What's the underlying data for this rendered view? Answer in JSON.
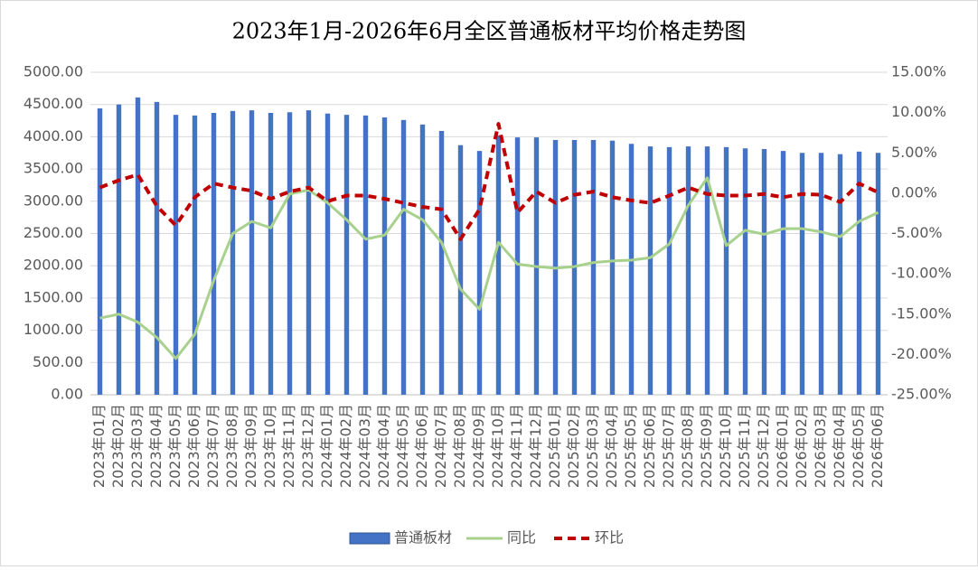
{
  "chart_data": {
    "type": "bar-line",
    "title": "2023年1月-2026年6月全区普通板材平均价格走势图",
    "categories": [
      "2023年01月",
      "2023年02月",
      "2023年03月",
      "2023年04月",
      "2023年05月",
      "2023年06月",
      "2023年07月",
      "2023年08月",
      "2023年09月",
      "2023年10月",
      "2023年11月",
      "2023年12月",
      "2024年01月",
      "2024年02月",
      "2024年03月",
      "2024年04月",
      "2024年05月",
      "2024年06月",
      "2024年07月",
      "2024年08月",
      "2024年09月",
      "2024年10月",
      "2024年11月",
      "2024年12月",
      "2025年01月",
      "2025年02月",
      "2025年03月",
      "2025年04月",
      "2025年05月",
      "2025年06月",
      "2025年07月",
      "2025年08月",
      "2025年09月",
      "2025年10月",
      "2025年11月",
      "2025年12月",
      "2026年01月",
      "2026年02月",
      "2026年03月",
      "2026年04月",
      "2026年05月",
      "2026年06月"
    ],
    "series": [
      {
        "name": "普通板材",
        "type": "bar",
        "color": "#4472c4",
        "values": [
          4440,
          4500,
          4610,
          4540,
          4340,
          4330,
          4370,
          4400,
          4410,
          4370,
          4380,
          4410,
          4360,
          4340,
          4330,
          4300,
          4260,
          4190,
          4090,
          3870,
          3780,
          4020,
          3990,
          3990,
          3950,
          3950,
          3950,
          3940,
          3890,
          3850,
          3840,
          3850,
          3850,
          3840,
          3820,
          3810,
          3780,
          3750,
          3750,
          3730,
          3770,
          3750
        ]
      },
      {
        "name": "同比",
        "type": "line",
        "axis": "y2",
        "color": "#a9d18e",
        "values": [
          -15.5,
          -15.0,
          -16.0,
          -17.9,
          -20.5,
          -17.5,
          -10.8,
          -5.0,
          -3.5,
          -4.3,
          -0.1,
          0.4,
          -1.2,
          -3.3,
          -5.7,
          -5.2,
          -2.0,
          -3.3,
          -6.1,
          -11.9,
          -14.4,
          -6.1,
          -8.8,
          -9.1,
          -9.3,
          -9.1,
          -8.6,
          -8.4,
          -8.3,
          -8.0,
          -6.3,
          -1.5,
          1.9,
          -6.5,
          -4.6,
          -5.1,
          -4.4,
          -4.4,
          -4.8,
          -5.4,
          -3.5,
          -2.4
        ]
      },
      {
        "name": "环比",
        "type": "line",
        "dashed": true,
        "axis": "y2",
        "color": "#c00000",
        "values": [
          0.7,
          1.6,
          2.3,
          -1.6,
          -4.0,
          -0.5,
          1.2,
          0.7,
          0.3,
          -0.7,
          0.2,
          0.7,
          -1.0,
          -0.3,
          -0.3,
          -0.7,
          -1.2,
          -1.7,
          -2.0,
          -5.7,
          -2.0,
          8.6,
          -2.4,
          0.2,
          -1.2,
          -0.2,
          0.2,
          -0.5,
          -0.9,
          -1.2,
          -0.3,
          0.7,
          -0.1,
          -0.3,
          -0.3,
          -0.1,
          -0.5,
          -0.1,
          -0.2,
          -1.1,
          1.2,
          0.1
        ]
      }
    ],
    "ylim": [
      0,
      5000
    ],
    "yticks": [
      {
        "value": 0,
        "label": "0.00"
      },
      {
        "value": 500,
        "label": "500.00"
      },
      {
        "value": 1000,
        "label": "1000.00"
      },
      {
        "value": 1500,
        "label": "1500.00"
      },
      {
        "value": 2000,
        "label": "2000.00"
      },
      {
        "value": 2500,
        "label": "2500.00"
      },
      {
        "value": 3000,
        "label": "3000.00"
      },
      {
        "value": 3500,
        "label": "3500.00"
      },
      {
        "value": 4000,
        "label": "4000.00"
      },
      {
        "value": 4500,
        "label": "4500.00"
      },
      {
        "value": 5000,
        "label": "5000.00"
      }
    ],
    "y2lim": [
      -25,
      15
    ],
    "y2ticks": [
      {
        "value": -25,
        "label": "-25.00%"
      },
      {
        "value": -20,
        "label": "-20.00%"
      },
      {
        "value": -15,
        "label": "-15.00%"
      },
      {
        "value": -10,
        "label": "-10.00%"
      },
      {
        "value": -5,
        "label": "-5.00%"
      },
      {
        "value": 0,
        "label": "0.00%"
      },
      {
        "value": 5,
        "label": "5.00%"
      },
      {
        "value": 10,
        "label": "10.00%"
      },
      {
        "value": 15,
        "label": "15.00%"
      }
    ],
    "grid": true,
    "legend": "bottom"
  }
}
